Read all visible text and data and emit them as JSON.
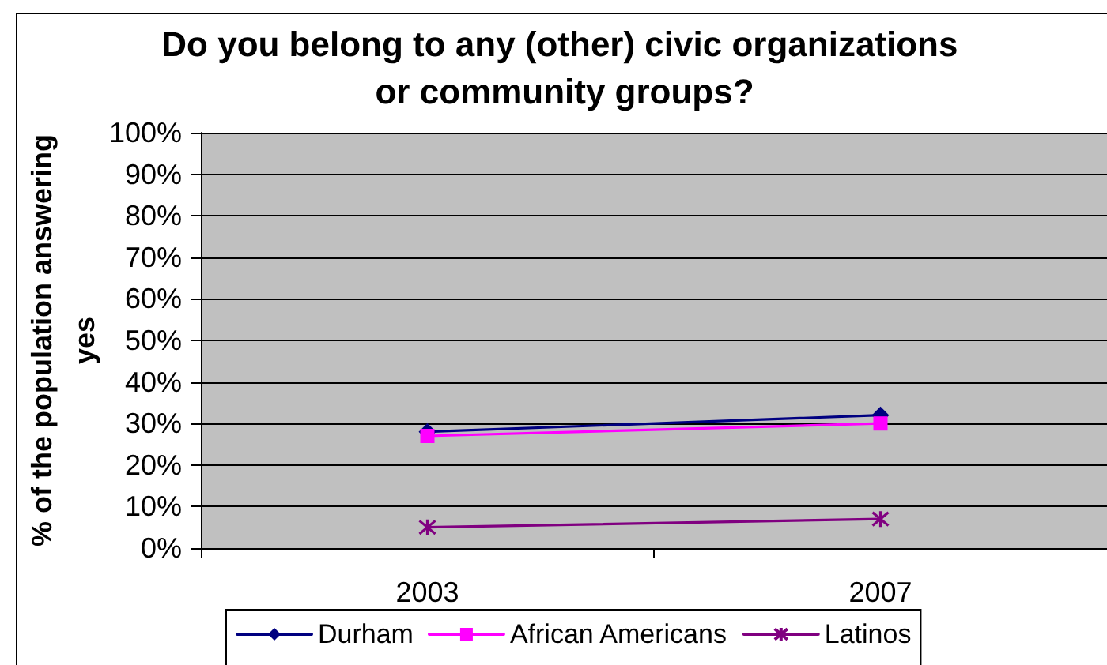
{
  "chart_data": {
    "type": "line",
    "title": "Do you belong to any (other) civic organizations or community groups?",
    "ylabel": "% of the population answering yes",
    "categories": [
      "2003",
      "2007"
    ],
    "series": [
      {
        "name": "Durham",
        "color": "#000080",
        "values": [
          28,
          32
        ],
        "marker": "diamond"
      },
      {
        "name": "African Americans",
        "color": "#ff00ff",
        "values": [
          27,
          30
        ],
        "marker": "square"
      },
      {
        "name": "Latinos",
        "color": "#800080",
        "values": [
          5,
          7
        ],
        "marker": "cross"
      }
    ],
    "ylim": [
      0,
      100
    ],
    "yticks": [
      {
        "value": 0,
        "label": "0%"
      },
      {
        "value": 10,
        "label": "10%"
      },
      {
        "value": 20,
        "label": "20%"
      },
      {
        "value": 30,
        "label": "30%"
      },
      {
        "value": 40,
        "label": "40%"
      },
      {
        "value": 50,
        "label": "50%"
      },
      {
        "value": 60,
        "label": "60%"
      },
      {
        "value": 70,
        "label": "70%"
      },
      {
        "value": 80,
        "label": "80%"
      },
      {
        "value": 90,
        "label": "90%"
      },
      {
        "value": 100,
        "label": "100%"
      }
    ],
    "grid": "y",
    "legend": "bottom",
    "line_style": "solid"
  }
}
